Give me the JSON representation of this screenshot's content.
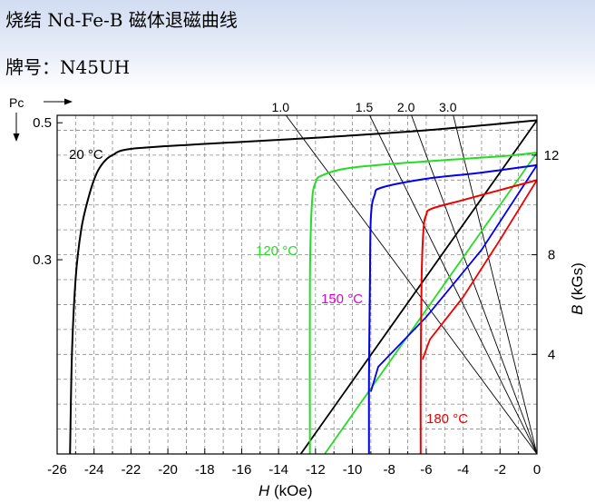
{
  "header": {
    "title": "烧结 Nd-Fe-B 磁体退磁曲线",
    "grade": "牌号：N45UH"
  },
  "chart_data": {
    "type": "line",
    "title": "",
    "xlabel_italic": "H",
    "xlabel_unit": " (kOe)",
    "ylabel_italic": "B",
    "ylabel_unit": " (kGs)",
    "pc_axis_label": "Pc",
    "xlim": [
      -26,
      0
    ],
    "ylim": [
      0,
      13.6
    ],
    "x_ticks": [
      -26,
      -24,
      -22,
      -20,
      -18,
      -16,
      -14,
      -12,
      -10,
      -8,
      -6,
      -4,
      -2,
      0
    ],
    "y_ticks": [
      4,
      8,
      12
    ],
    "pc_ticks": [
      {
        "label": "0.5",
        "b": 13.3
      },
      {
        "label": "0.3",
        "b": 7.8
      }
    ],
    "grid": true,
    "load_lines": [
      {
        "pc": "1.0",
        "slope": 1.0
      },
      {
        "pc": "1.5",
        "slope": 1.5
      },
      {
        "pc": "2.0",
        "slope": 2.0
      },
      {
        "pc": "3.0",
        "slope": 3.0
      }
    ],
    "series": [
      {
        "name": "20 °C",
        "color": "#000000",
        "bh_curve": [
          [
            -25.3,
            0
          ],
          [
            -25.2,
            4
          ],
          [
            -25.0,
            7.0
          ],
          [
            -24.7,
            9.0
          ],
          [
            -24.3,
            10.3
          ],
          [
            -23.9,
            11.2
          ],
          [
            -23.5,
            11.7
          ],
          [
            -23.0,
            12.0
          ],
          [
            -22.0,
            12.25
          ],
          [
            -18,
            12.45
          ],
          [
            -12,
            12.7
          ],
          [
            -6,
            13.0
          ],
          [
            0,
            13.4
          ]
        ],
        "b_line": [
          [
            -12.8,
            0
          ],
          [
            0,
            13.4
          ]
        ]
      },
      {
        "name": "120 °C",
        "color": "#22dd22",
        "bh_curve": [
          [
            -12.3,
            0
          ],
          [
            -12.3,
            7.0
          ],
          [
            -12.2,
            10.0
          ],
          [
            -12.0,
            10.9
          ],
          [
            -11.6,
            11.2
          ],
          [
            -10,
            11.5
          ],
          [
            -6,
            11.75
          ],
          [
            -2,
            11.95
          ],
          [
            0,
            12.1
          ]
        ],
        "b_line": [
          [
            -11.5,
            0
          ],
          [
            0,
            12.1
          ]
        ]
      },
      {
        "name": "150 °C",
        "color": "#0000ee",
        "bh_curve": [
          [
            -9.1,
            0
          ],
          [
            -9.1,
            3.0
          ],
          [
            -9.05,
            7.0
          ],
          [
            -9.0,
            9.5
          ],
          [
            -8.8,
            10.4
          ],
          [
            -8.4,
            10.7
          ],
          [
            -6,
            11.05
          ],
          [
            -3,
            11.3
          ],
          [
            0,
            11.6
          ]
        ],
        "b_line": [
          [
            -9.0,
            2.5
          ],
          [
            -8.6,
            3.5
          ],
          [
            -6,
            5.5
          ],
          [
            -3,
            8.2
          ],
          [
            0,
            11.6
          ]
        ]
      },
      {
        "name": "180 °C",
        "color": "#ee0000",
        "bh_curve": [
          [
            -6.3,
            0
          ],
          [
            -6.3,
            3.0
          ],
          [
            -6.25,
            7.0
          ],
          [
            -6.15,
            9.0
          ],
          [
            -6.0,
            9.6
          ],
          [
            -5.7,
            9.85
          ],
          [
            -4,
            10.2
          ],
          [
            -2,
            10.6
          ],
          [
            0,
            11.0
          ]
        ],
        "b_line": [
          [
            -6.2,
            3.8
          ],
          [
            -5.8,
            4.6
          ],
          [
            -4,
            6.3
          ],
          [
            -2,
            8.6
          ],
          [
            0,
            11.0
          ]
        ]
      }
    ],
    "series_label_text": {
      "s20": "20 °C",
      "s120": "120 °C",
      "s150": "150 °C",
      "s180": "180 °C"
    }
  }
}
